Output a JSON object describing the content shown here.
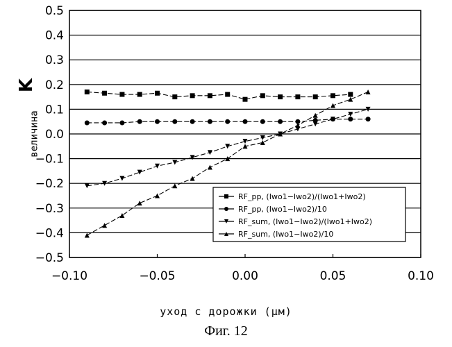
{
  "chart_data": {
    "type": "line",
    "xlabel": "уход с дорожки (µм)",
    "ylabel": "величина",
    "ylabel_symbol": "K",
    "caption": "Фиг. 12",
    "xlim": [
      -0.1,
      0.1
    ],
    "ylim": [
      -0.5,
      0.5
    ],
    "xticks": [
      "-0.10",
      "-0.05",
      "0.00",
      "0.05",
      "0.10"
    ],
    "yticks": [
      "-0.5",
      "-0.4",
      "-0.3",
      "-0.2",
      "-0.1",
      "0.0",
      "0.1",
      "0.2",
      "0.3",
      "0.4",
      "0.5"
    ],
    "grid": "horizontal",
    "legend_position": "bottom-right",
    "series": [
      {
        "name": "RF_pp, (Iwo1−Iwo2)/(Iwo1+Iwo2)",
        "marker": "square",
        "x": [
          -0.09,
          -0.08,
          -0.07,
          -0.06,
          -0.05,
          -0.04,
          -0.03,
          -0.02,
          -0.01,
          0.0,
          0.01,
          0.02,
          0.03,
          0.04,
          0.05,
          0.06
        ],
        "y": [
          0.17,
          0.165,
          0.16,
          0.16,
          0.165,
          0.15,
          0.155,
          0.155,
          0.16,
          0.14,
          0.155,
          0.15,
          0.15,
          0.15,
          0.155,
          0.16
        ]
      },
      {
        "name": "RF_pp, (Iwo1−Iwo2)/10",
        "marker": "circle",
        "x": [
          -0.09,
          -0.08,
          -0.07,
          -0.06,
          -0.05,
          -0.04,
          -0.03,
          -0.02,
          -0.01,
          0.0,
          0.01,
          0.02,
          0.03,
          0.04,
          0.05,
          0.06,
          0.07
        ],
        "y": [
          0.045,
          0.045,
          0.045,
          0.05,
          0.05,
          0.05,
          0.05,
          0.05,
          0.05,
          0.05,
          0.05,
          0.05,
          0.05,
          0.055,
          0.06,
          0.06,
          0.06
        ]
      },
      {
        "name": "RF_sum, (Iwo1−Iwo2)/(Iwo1+Iwo2)",
        "marker": "triangle-down",
        "x": [
          -0.09,
          -0.08,
          -0.07,
          -0.06,
          -0.05,
          -0.04,
          -0.03,
          -0.02,
          -0.01,
          0.0,
          0.01,
          0.02,
          0.03,
          0.04,
          0.05,
          0.06,
          0.07
        ],
        "y": [
          -0.21,
          -0.2,
          -0.18,
          -0.155,
          -0.13,
          -0.115,
          -0.095,
          -0.075,
          -0.05,
          -0.03,
          -0.015,
          0.0,
          0.02,
          0.04,
          0.06,
          0.08,
          0.1
        ]
      },
      {
        "name": "RF_sum, (Iwo1−Iwo2)/10",
        "marker": "triangle-up",
        "x": [
          -0.09,
          -0.08,
          -0.07,
          -0.06,
          -0.05,
          -0.04,
          -0.03,
          -0.02,
          -0.01,
          0.0,
          0.01,
          0.02,
          0.03,
          0.04,
          0.05,
          0.06,
          0.07
        ],
        "y": [
          -0.41,
          -0.37,
          -0.33,
          -0.28,
          -0.25,
          -0.21,
          -0.18,
          -0.135,
          -0.1,
          -0.05,
          -0.035,
          0.0,
          0.035,
          0.075,
          0.115,
          0.14,
          0.17
        ]
      }
    ]
  }
}
